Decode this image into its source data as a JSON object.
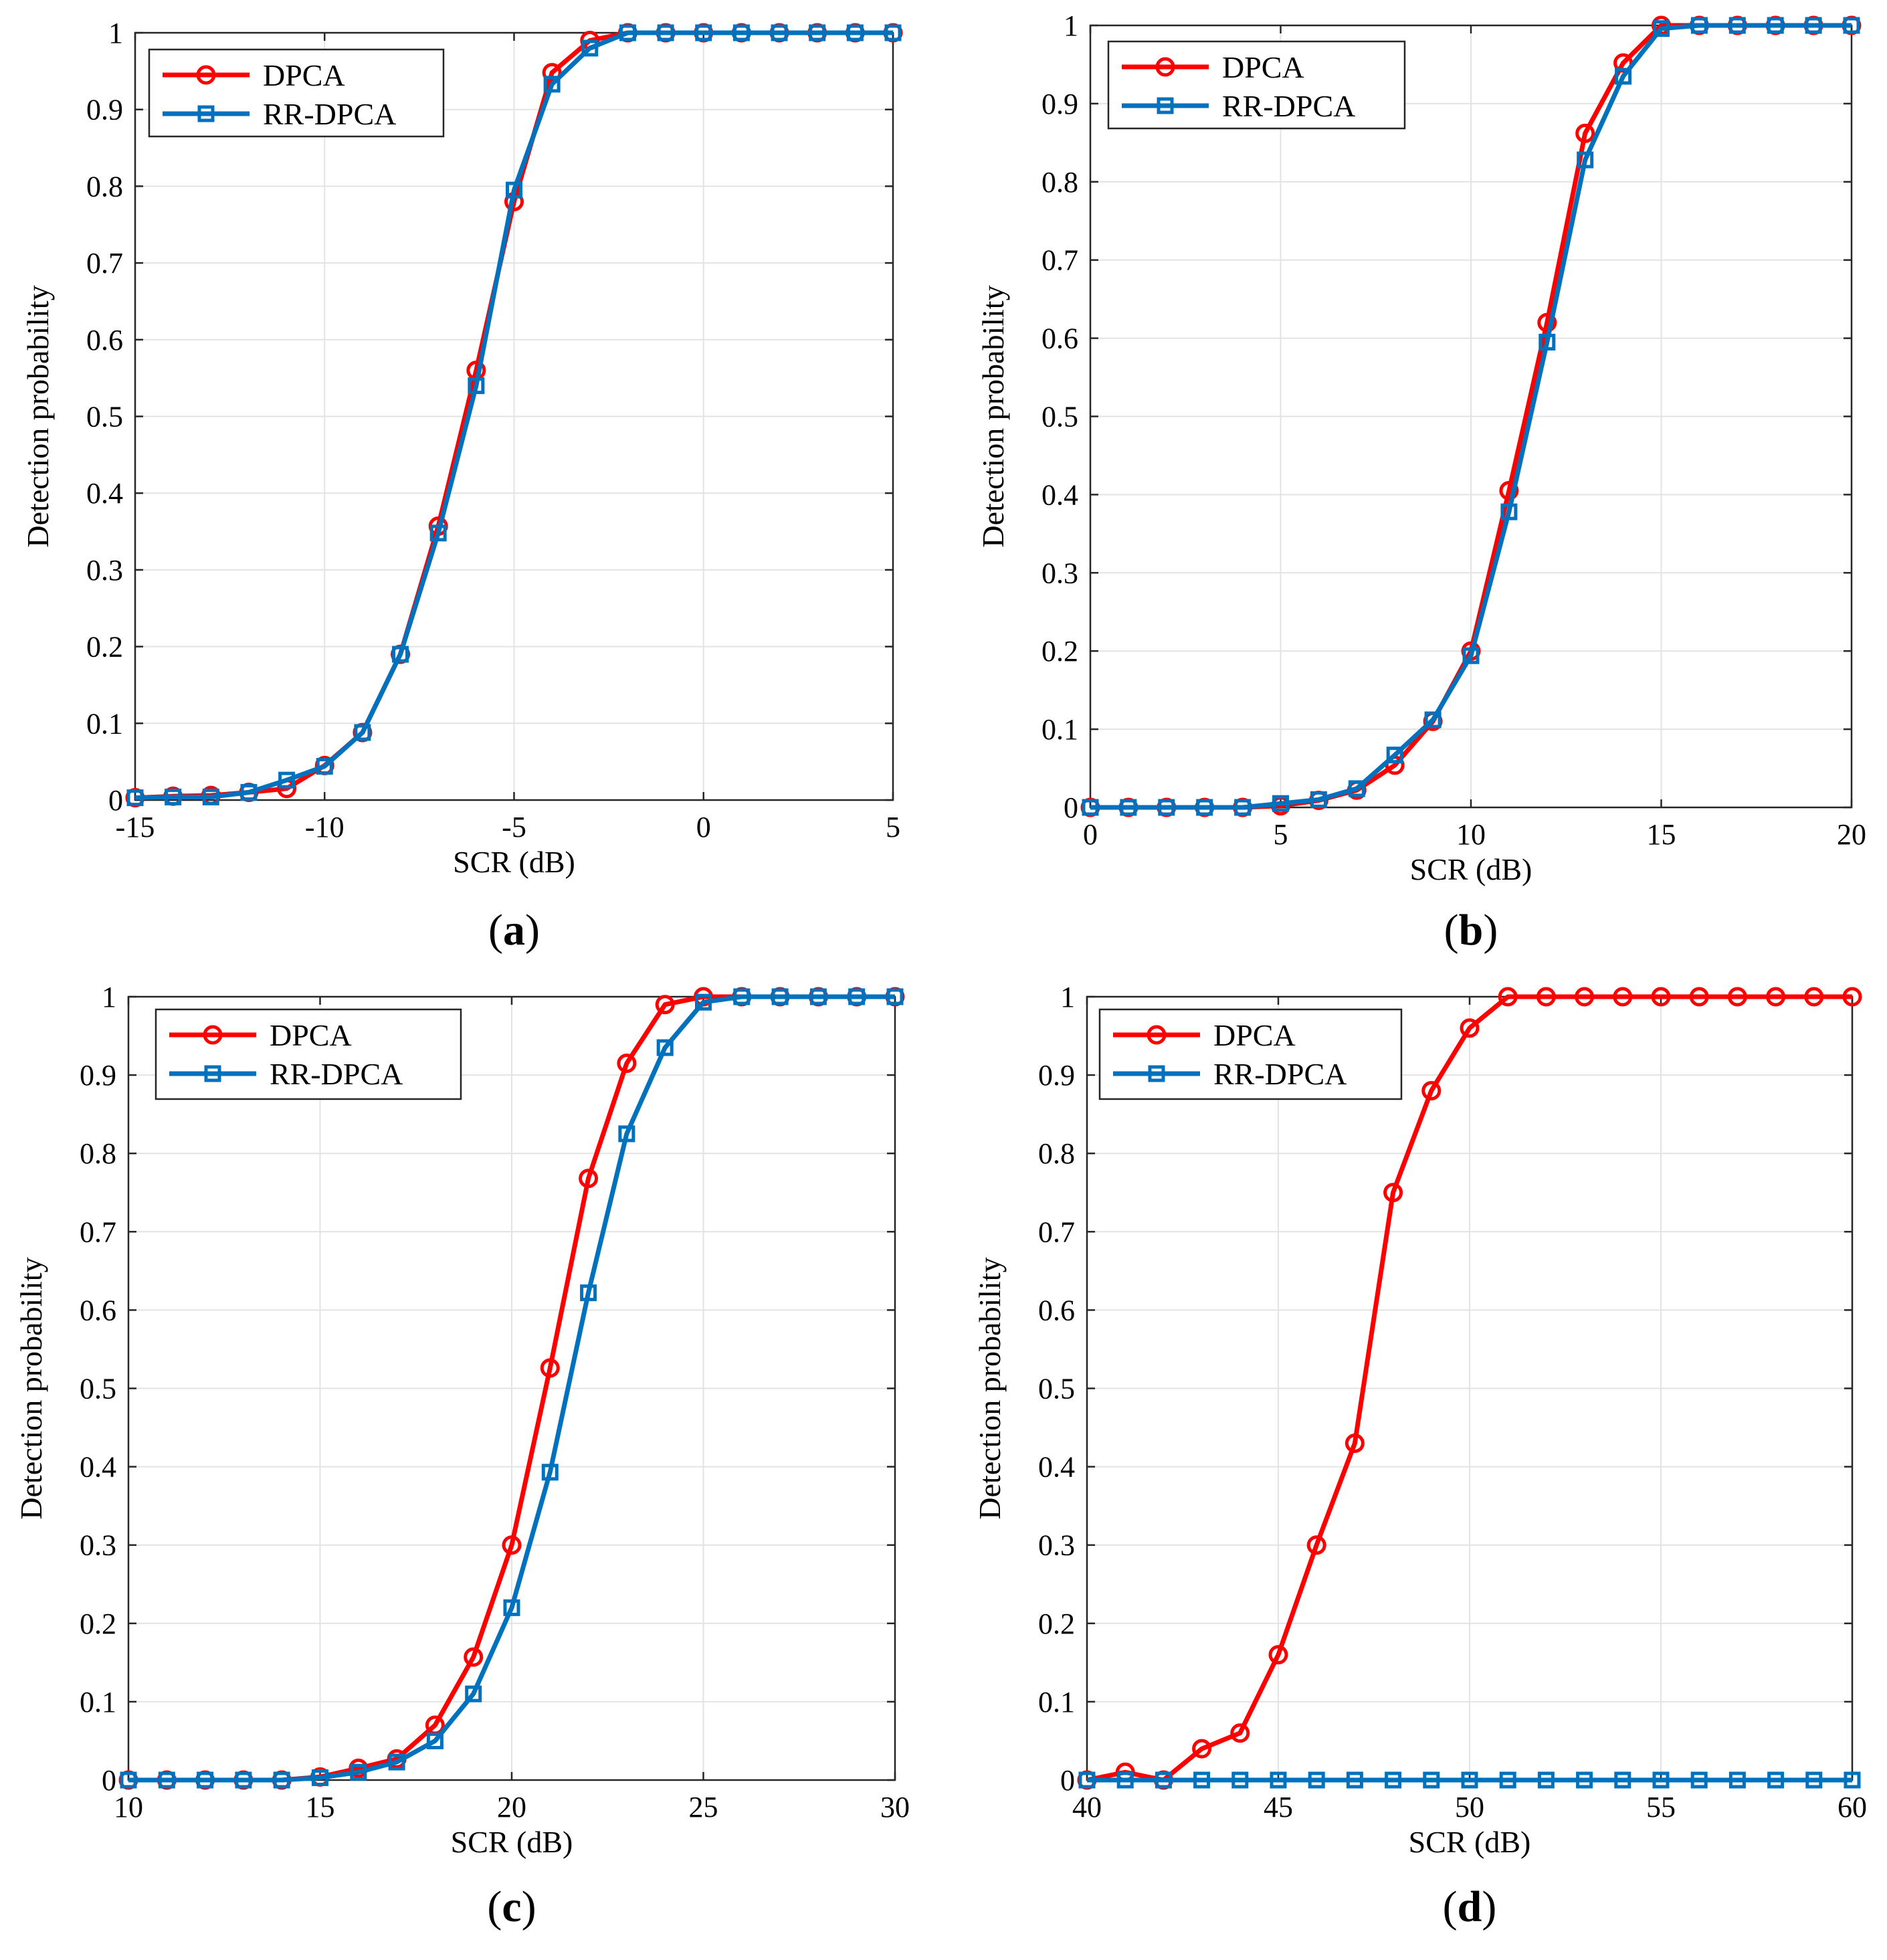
{
  "figure": {
    "series_colors": {
      "DPCA": "#ff0000",
      "RR-DPCA": "#0072bd"
    },
    "grid_color": "#e3e3e3"
  },
  "chart_data": [
    {
      "panel": "(a)",
      "type": "line",
      "xlabel": "SCR (dB)",
      "ylabel": "Detection probability",
      "xlim": [
        -15,
        5
      ],
      "ylim": [
        0,
        1
      ],
      "xticks": [
        -15,
        -10,
        -5,
        0,
        5
      ],
      "yticks": [
        0,
        0.1,
        0.2,
        0.3,
        0.4,
        0.5,
        0.6,
        0.7,
        0.8,
        0.9,
        1
      ],
      "grid": true,
      "legend": "top-left",
      "x": [
        -15,
        -14,
        -13,
        -12,
        -11,
        -10,
        -9,
        -8,
        -7,
        -6,
        -5,
        -4,
        -3,
        -2,
        -1,
        0,
        1,
        2,
        3,
        4,
        5
      ],
      "series": [
        {
          "name": "DPCA",
          "marker": "circle",
          "values": [
            0.003,
            0.005,
            0.006,
            0.01,
            0.015,
            0.045,
            0.088,
            0.19,
            0.357,
            0.56,
            0.78,
            0.948,
            0.99,
            1,
            1,
            1,
            1,
            1,
            1,
            1,
            1
          ]
        },
        {
          "name": "RR-DPCA",
          "marker": "square",
          "values": [
            0.003,
            0.004,
            0.004,
            0.01,
            0.026,
            0.044,
            0.088,
            0.19,
            0.348,
            0.54,
            0.795,
            0.933,
            0.98,
            1,
            1,
            1,
            1,
            1,
            1,
            1,
            1
          ]
        }
      ]
    },
    {
      "panel": "(b)",
      "type": "line",
      "xlabel": "SCR (dB)",
      "ylabel": "Detection probability",
      "xlim": [
        0,
        20
      ],
      "ylim": [
        0,
        1
      ],
      "xticks": [
        0,
        5,
        10,
        15,
        20
      ],
      "yticks": [
        0,
        0.1,
        0.2,
        0.3,
        0.4,
        0.5,
        0.6,
        0.7,
        0.8,
        0.9,
        1
      ],
      "grid": true,
      "legend": "top-left",
      "x": [
        0,
        1,
        2,
        3,
        4,
        5,
        6,
        7,
        8,
        9,
        10,
        11,
        12,
        13,
        14,
        15,
        16,
        17,
        18,
        19,
        20
      ],
      "series": [
        {
          "name": "DPCA",
          "marker": "circle",
          "values": [
            0,
            0,
            0,
            0,
            0,
            0.002,
            0.009,
            0.022,
            0.054,
            0.11,
            0.2,
            0.405,
            0.62,
            0.862,
            0.952,
            1,
            1,
            1,
            1,
            1,
            1
          ]
        },
        {
          "name": "RR-DPCA",
          "marker": "square",
          "values": [
            0,
            0,
            0,
            0,
            0,
            0.005,
            0.01,
            0.024,
            0.067,
            0.112,
            0.194,
            0.378,
            0.595,
            0.828,
            0.935,
            0.996,
            1,
            1,
            1,
            1,
            1
          ]
        }
      ]
    },
    {
      "panel": "(c)",
      "type": "line",
      "xlabel": "SCR (dB)",
      "ylabel": "Detection probability",
      "xlim": [
        10,
        30
      ],
      "ylim": [
        0,
        1
      ],
      "xticks": [
        10,
        15,
        20,
        25,
        30
      ],
      "yticks": [
        0,
        0.1,
        0.2,
        0.3,
        0.4,
        0.5,
        0.6,
        0.7,
        0.8,
        0.9,
        1
      ],
      "grid": true,
      "legend": "top-left",
      "x": [
        10,
        11,
        12,
        13,
        14,
        15,
        16,
        17,
        18,
        19,
        20,
        21,
        22,
        23,
        24,
        25,
        26,
        27,
        28,
        29,
        30
      ],
      "series": [
        {
          "name": "DPCA",
          "marker": "circle",
          "values": [
            0,
            0,
            0,
            0,
            0,
            0.004,
            0.015,
            0.027,
            0.07,
            0.157,
            0.3,
            0.526,
            0.768,
            0.915,
            0.99,
            1,
            1,
            1,
            1,
            1,
            1
          ]
        },
        {
          "name": "RR-DPCA",
          "marker": "square",
          "values": [
            0,
            0,
            0,
            0,
            0,
            0.003,
            0.01,
            0.023,
            0.05,
            0.11,
            0.22,
            0.393,
            0.622,
            0.825,
            0.935,
            0.993,
            1,
            1,
            1,
            1,
            1
          ]
        }
      ]
    },
    {
      "panel": "(d)",
      "type": "line",
      "xlabel": "SCR (dB)",
      "ylabel": "Detection probability",
      "xlim": [
        40,
        60
      ],
      "ylim": [
        0,
        1
      ],
      "xticks": [
        40,
        45,
        50,
        55,
        60
      ],
      "yticks": [
        0,
        0.1,
        0.2,
        0.3,
        0.4,
        0.5,
        0.6,
        0.7,
        0.8,
        0.9,
        1
      ],
      "grid": true,
      "legend": "top-left",
      "x": [
        40,
        41,
        42,
        43,
        44,
        45,
        46,
        47,
        48,
        49,
        50,
        51,
        52,
        53,
        54,
        55,
        56,
        57,
        58,
        59,
        60
      ],
      "series": [
        {
          "name": "DPCA",
          "marker": "circle",
          "values": [
            0,
            0.01,
            0,
            0.04,
            0.06,
            0.16,
            0.3,
            0.43,
            0.75,
            0.88,
            0.96,
            1,
            1,
            1,
            1,
            1,
            1,
            1,
            1,
            1,
            1
          ]
        },
        {
          "name": "RR-DPCA",
          "marker": "square",
          "values": [
            0,
            0,
            0,
            0,
            0,
            0,
            0,
            0,
            0,
            0,
            0,
            0,
            0,
            0,
            0,
            0,
            0,
            0,
            0,
            0,
            0
          ]
        }
      ]
    }
  ]
}
